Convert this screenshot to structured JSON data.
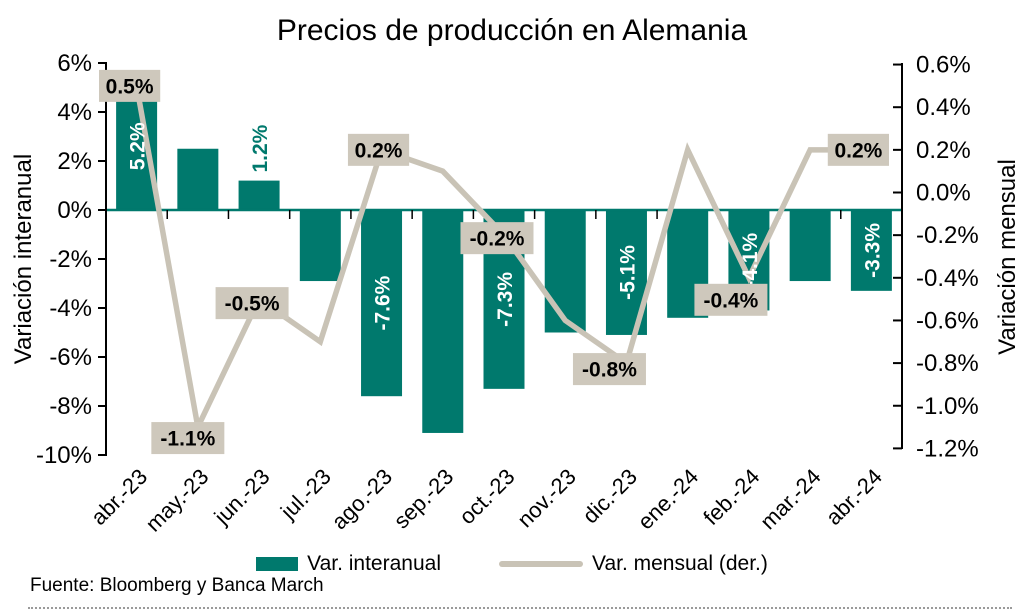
{
  "title": "Precios de producción en Alemania",
  "source": "Fuente: Bloomberg y Banca March",
  "colors": {
    "bar": "#00796D",
    "line": "#C9C3B6",
    "label_box_bg": "#CEC8BC",
    "bar_label_inside": "#FFFFFF",
    "bar_label_outside": "#00796D",
    "axis": "#000000",
    "zero_line": "#00796D",
    "box_text": "#000000"
  },
  "legend": {
    "items": [
      {
        "label": "Var. interanual",
        "type": "bar"
      },
      {
        "label": "Var. mensual (der.)",
        "type": "line"
      }
    ]
  },
  "left_axis": {
    "title": "Variación interanual",
    "tick_labels": [
      "6%",
      "4%",
      "2%",
      "0%",
      "-2%",
      "-4%",
      "-6%",
      "-8%",
      "-10%"
    ],
    "max": 6,
    "min": -10,
    "step": 2
  },
  "right_axis": {
    "title": "Variación mensual",
    "tick_labels": [
      "0.6%",
      "0.4%",
      "0.2%",
      "0.0%",
      "-0.2%",
      "-0.4%",
      "-0.6%",
      "-0.8%",
      "-1.0%",
      "-1.2%"
    ],
    "max": 0.6,
    "min": -1.2,
    "step": 0.2
  },
  "chart_data": {
    "type": "bar+line (dual axis)",
    "title": "Precios de producción en Alemania",
    "categories": [
      "abr.-23",
      "may.-23",
      "jun.-23",
      "jul.-23",
      "ago.-23",
      "sep.-23",
      "oct.-23",
      "nov.-23",
      "dic.-23",
      "ene.-24",
      "feb.-24",
      "mar.-24",
      "abr.-24"
    ],
    "series": [
      {
        "name": "Var. interanual",
        "type": "bar",
        "axis": "left",
        "values": [
          5.2,
          2.5,
          1.2,
          -2.9,
          -7.6,
          -9.1,
          -7.3,
          -5.0,
          -5.1,
          -4.4,
          -4.1,
          -2.9,
          -3.3
        ],
        "labels": [
          "5.2%",
          null,
          "1.2%",
          null,
          "-7.6%",
          null,
          "-7.3%",
          null,
          "-5.1%",
          null,
          "-4.1%",
          null,
          "-3.3%"
        ]
      },
      {
        "name": "Var. mensual (der.)",
        "type": "line",
        "axis": "right",
        "values": [
          0.5,
          -1.1,
          -0.5,
          -0.7,
          0.2,
          0.1,
          -0.2,
          -0.6,
          -0.8,
          0.2,
          -0.4,
          0.2,
          0.2
        ],
        "labels": [
          "0.5%",
          "-1.1%",
          "-0.5%",
          null,
          "0.2%",
          null,
          "-0.2%",
          null,
          "-0.8%",
          null,
          "-0.4%",
          null,
          "0.2%"
        ],
        "label_offsets": [
          [
            -7,
            0
          ],
          [
            -10,
            11
          ],
          [
            -7,
            4
          ],
          null,
          [
            -3,
            0
          ],
          null,
          [
            -7,
            3
          ],
          null,
          [
            -17,
            6
          ],
          null,
          [
            -18,
            22
          ],
          null,
          [
            -13,
            0
          ]
        ]
      }
    ],
    "left_ylim": [
      -10,
      6
    ],
    "right_ylim": [
      -1.2,
      0.6
    ],
    "grid": false,
    "legend_position": "bottom"
  }
}
